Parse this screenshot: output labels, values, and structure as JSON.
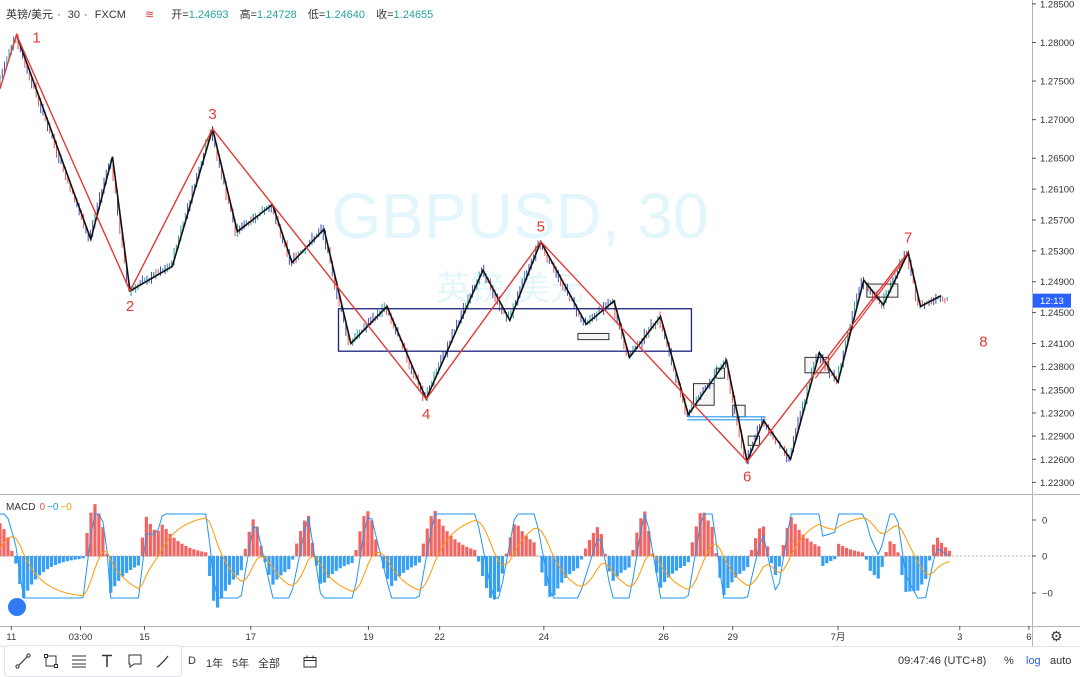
{
  "header": {
    "symbol": "英镑/美元",
    "interval": "30",
    "source": "FXCM",
    "open_label": "开=",
    "open": "1.24693",
    "high_label": "高=",
    "high": "1.24728",
    "low_label": "低=",
    "low": "1.24640",
    "close_label": "收=",
    "close": "1.24655"
  },
  "watermark": {
    "line1": "GBPUSD, 30",
    "line2": "英镑/美元"
  },
  "price_axis": {
    "ticks": [
      "1.28500",
      "1.28000",
      "1.27500",
      "1.27000",
      "1.26500",
      "1.26100",
      "1.25700",
      "1.25300",
      "1.24900",
      "1.24500",
      "1.24100",
      "1.23800",
      "1.23500",
      "1.23200",
      "1.22900",
      "1.22600",
      "1.22300"
    ],
    "last_price_badge": "12:13"
  },
  "time_axis": {
    "labels": [
      "11",
      "03:00",
      "15",
      "17",
      "19",
      "22",
      "24",
      "26",
      "29",
      "7月",
      "3",
      "6"
    ]
  },
  "macd": {
    "label": "MACD",
    "v1": "0",
    "v2": "−0",
    "v3": "−0",
    "ticks": [
      "0",
      "0",
      "−0"
    ]
  },
  "wave_labels": [
    "1",
    "2",
    "3",
    "4",
    "5",
    "6",
    "7",
    "8"
  ],
  "toolbar": {
    "ranges": [
      "D",
      "1年",
      "5年",
      "全部"
    ],
    "clock": "09:47:46 (UTC+8)",
    "pct": "%",
    "log": "log",
    "auto": "auto"
  },
  "chart_data": {
    "type": "candlestick",
    "symbol": "GBPUSD",
    "interval": "30",
    "ylim": [
      1.2215,
      1.2855
    ],
    "x_range": [
      0,
      100
    ],
    "zigzag_major": [
      {
        "x": 0,
        "y": 1.274
      },
      {
        "x": 1.6,
        "y": 1.281,
        "label": "1"
      },
      {
        "x": 12.6,
        "y": 1.2478,
        "label": "2"
      },
      {
        "x": 20.6,
        "y": 1.2688,
        "label": "3"
      },
      {
        "x": 41.3,
        "y": 1.2338,
        "label": "4"
      },
      {
        "x": 52.4,
        "y": 1.2542,
        "label": "5"
      },
      {
        "x": 72.4,
        "y": 1.2257,
        "label": "6"
      },
      {
        "x": 88.0,
        "y": 1.2528,
        "label": "7"
      },
      {
        "x": 92.0,
        "y": 1.245,
        "label": "8"
      }
    ],
    "zigzag_minor": [
      {
        "x": 1.6,
        "y": 1.281
      },
      {
        "x": 8.8,
        "y": 1.2545
      },
      {
        "x": 10.9,
        "y": 1.2652
      },
      {
        "x": 12.6,
        "y": 1.2478
      },
      {
        "x": 16.7,
        "y": 1.251
      },
      {
        "x": 20.6,
        "y": 1.2688
      },
      {
        "x": 23.0,
        "y": 1.2555
      },
      {
        "x": 26.4,
        "y": 1.259
      },
      {
        "x": 28.3,
        "y": 1.2515
      },
      {
        "x": 31.4,
        "y": 1.2558
      },
      {
        "x": 34.0,
        "y": 1.241
      },
      {
        "x": 37.5,
        "y": 1.2458
      },
      {
        "x": 41.3,
        "y": 1.2338
      },
      {
        "x": 46.8,
        "y": 1.2505
      },
      {
        "x": 49.4,
        "y": 1.244
      },
      {
        "x": 52.4,
        "y": 1.2542
      },
      {
        "x": 56.8,
        "y": 1.2435
      },
      {
        "x": 59.5,
        "y": 1.2465
      },
      {
        "x": 61.0,
        "y": 1.2392
      },
      {
        "x": 64.0,
        "y": 1.2445
      },
      {
        "x": 66.7,
        "y": 1.2318
      },
      {
        "x": 70.4,
        "y": 1.2388
      },
      {
        "x": 72.4,
        "y": 1.2257
      },
      {
        "x": 74.0,
        "y": 1.231
      },
      {
        "x": 76.6,
        "y": 1.226
      },
      {
        "x": 79.4,
        "y": 1.2398
      },
      {
        "x": 81.2,
        "y": 1.236
      },
      {
        "x": 83.7,
        "y": 1.2492
      },
      {
        "x": 85.6,
        "y": 1.246
      },
      {
        "x": 88.0,
        "y": 1.2528
      },
      {
        "x": 89.2,
        "y": 1.2458
      },
      {
        "x": 91.2,
        "y": 1.2472
      }
    ],
    "box_main": {
      "x0": 32.8,
      "x1": 67.0,
      "y_top": 1.2455,
      "y_bottom": 1.24
    },
    "small_boxes": [
      {
        "x0": 56.0,
        "x1": 59.0,
        "y_top": 1.2423,
        "y_bottom": 1.2415
      },
      {
        "x0": 67.2,
        "x1": 69.2,
        "y_top": 1.2358,
        "y_bottom": 1.233
      },
      {
        "x0": 69.4,
        "x1": 70.2,
        "y_top": 1.2378,
        "y_bottom": 1.2365
      },
      {
        "x0": 71.0,
        "x1": 72.2,
        "y_top": 1.233,
        "y_bottom": 1.2315
      },
      {
        "x0": 72.5,
        "x1": 73.6,
        "y_top": 1.229,
        "y_bottom": 1.2278
      },
      {
        "x0": 78.0,
        "x1": 80.3,
        "y_top": 1.2392,
        "y_bottom": 1.2372
      },
      {
        "x0": 84.0,
        "x1": 87.0,
        "y_top": 1.2487,
        "y_bottom": 1.247
      }
    ],
    "support_line": {
      "x0": 66.6,
      "x1": 74.2,
      "y": 1.2315
    },
    "trend_line_upper": {
      "x0": 79.0,
      "y0": 1.2365,
      "x1": 88.0,
      "y1": 1.2525
    }
  }
}
